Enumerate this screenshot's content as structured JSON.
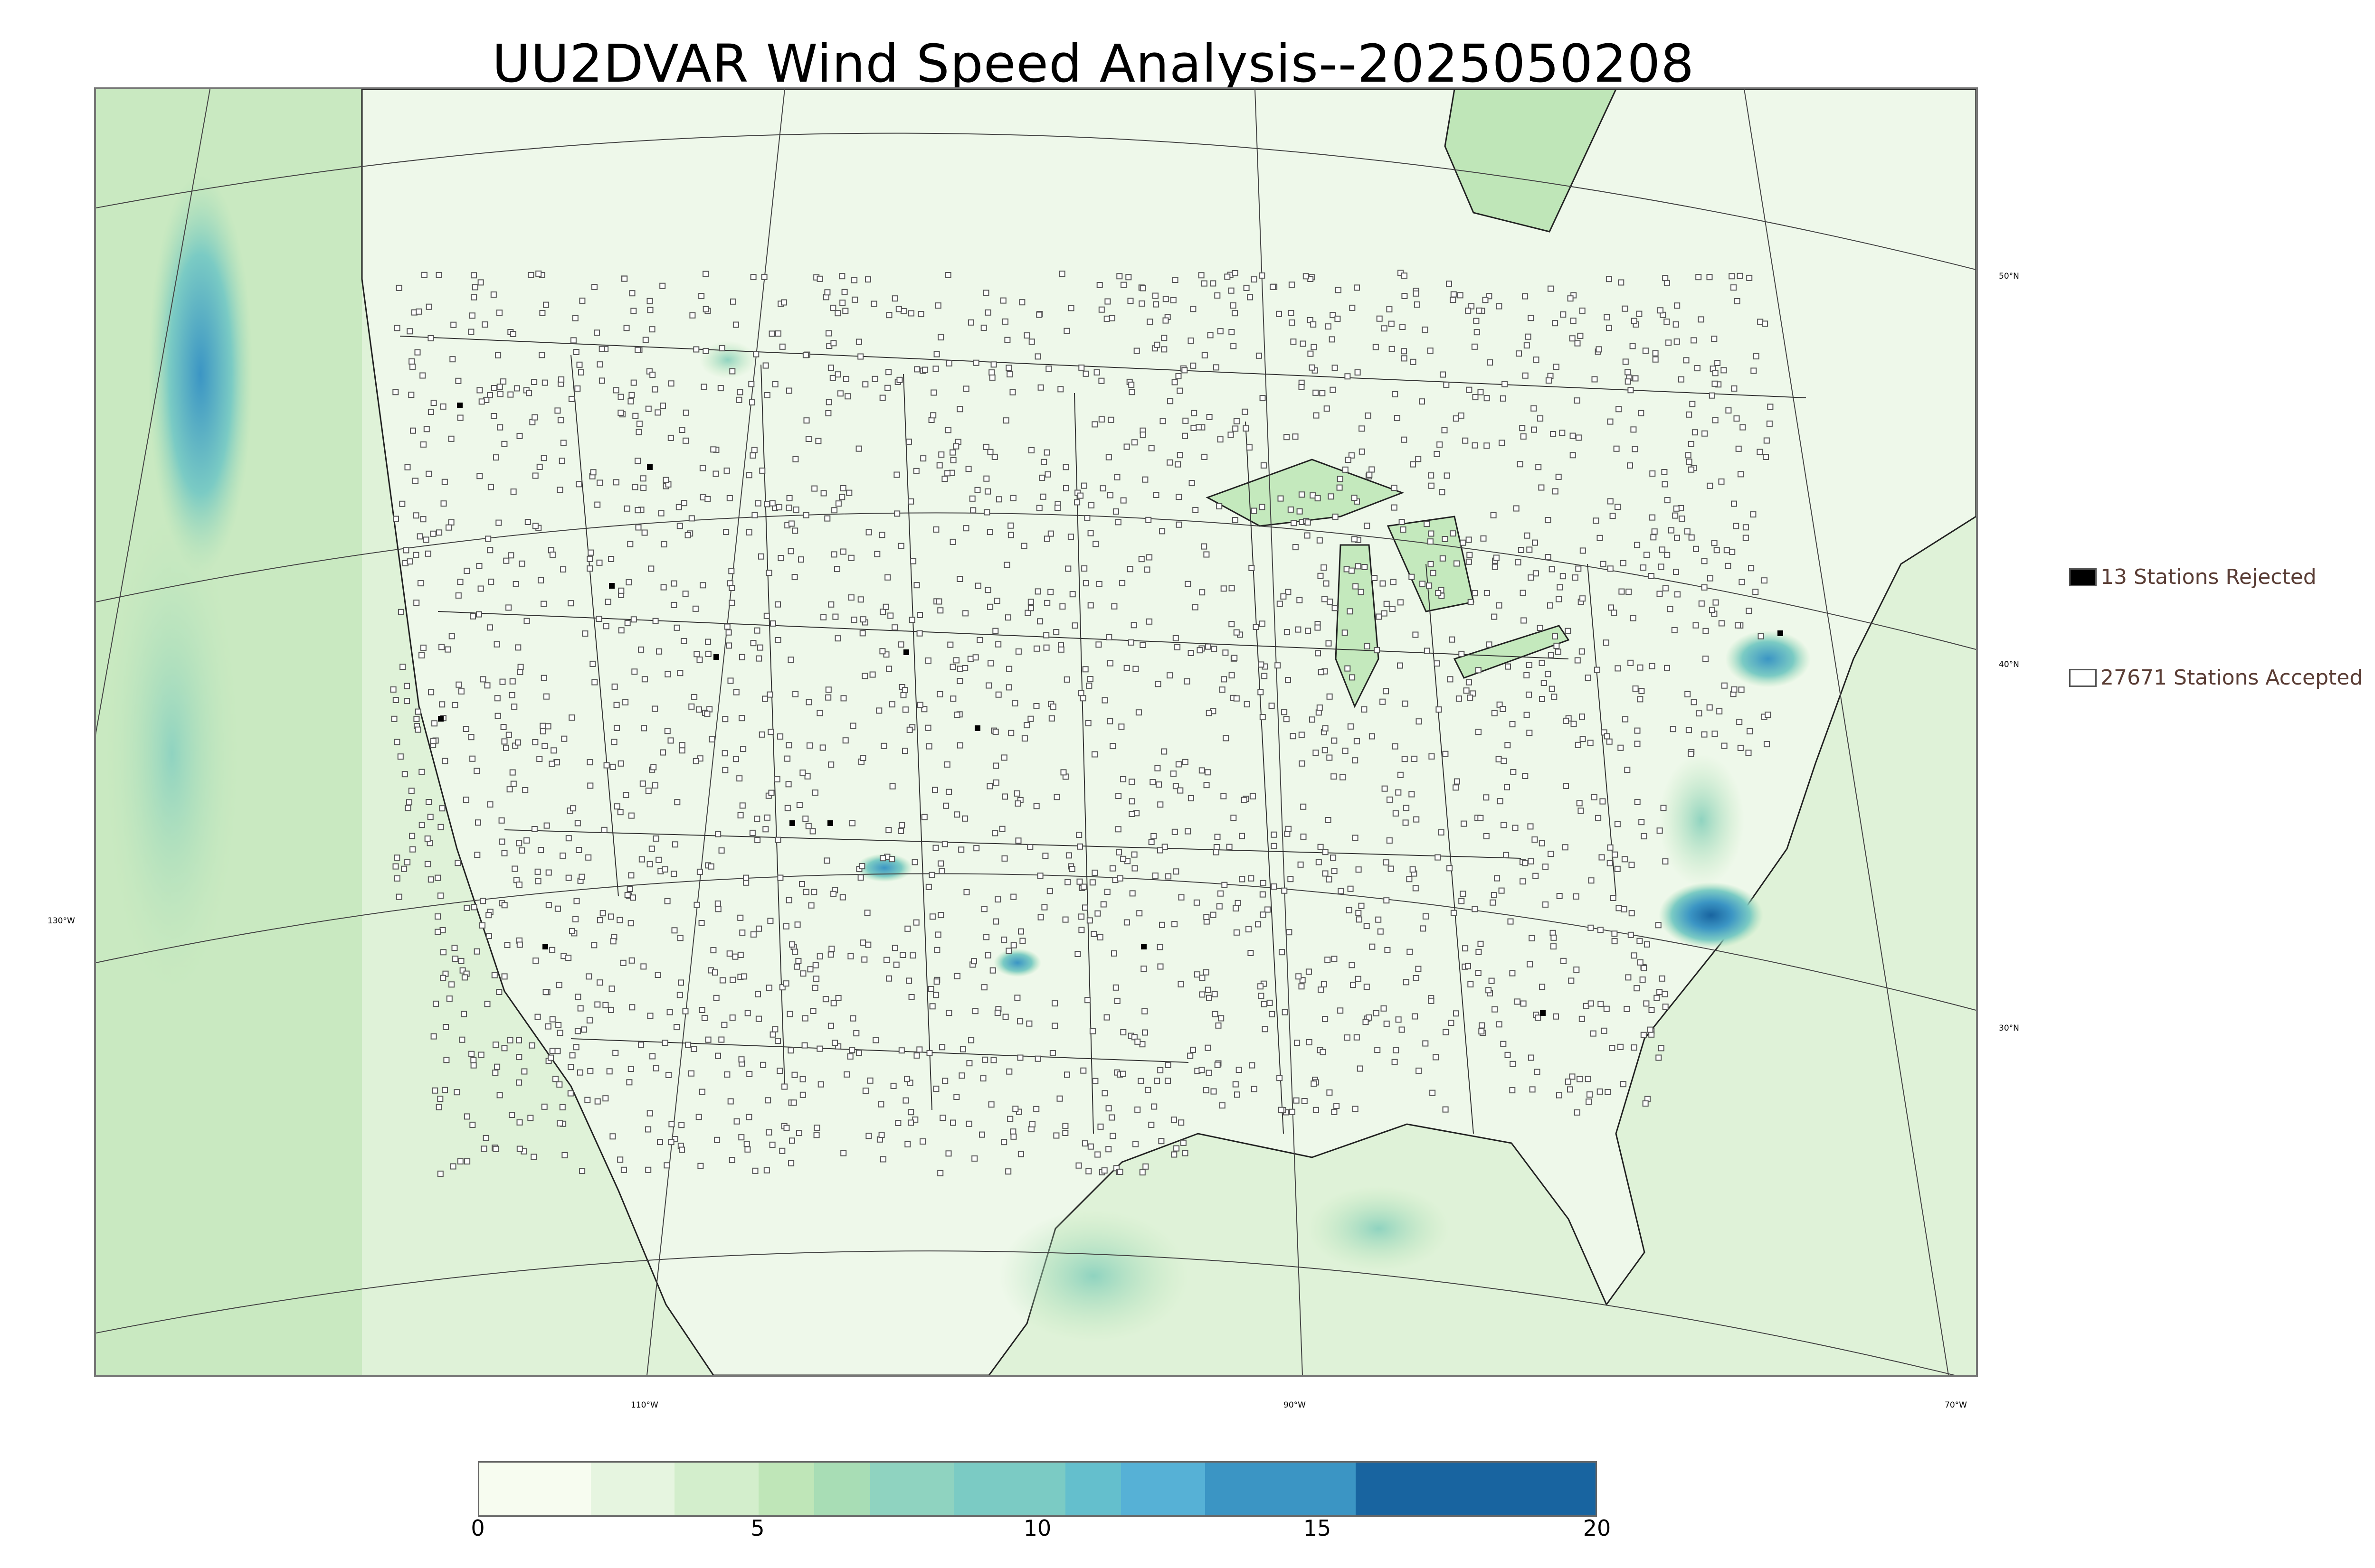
{
  "title": "UU2DVAR Wind Speed Analysis--2025050208",
  "graticule": {
    "lat_labels": [
      "50°N",
      "40°N",
      "30°N"
    ],
    "lon_labels": [
      "130°W",
      "110°W",
      "90°W",
      "70°W"
    ]
  },
  "legend": {
    "rejected": {
      "label": "13 Stations Rejected",
      "count": 13,
      "color": "#000000"
    },
    "accepted": {
      "label": "27671 Stations Accepted",
      "count": 27671,
      "color": "#ffffff"
    }
  },
  "colorbar": {
    "ticks": [
      "0",
      "5",
      "10",
      "15",
      "20"
    ],
    "min": 0,
    "max": 20,
    "bins": [
      {
        "from": 0,
        "to": 2,
        "color": "#f7fcf0"
      },
      {
        "from": 2,
        "to": 3.5,
        "color": "#e6f5e0"
      },
      {
        "from": 3.5,
        "to": 5,
        "color": "#d3eecc"
      },
      {
        "from": 5,
        "to": 6,
        "color": "#bfe6b8"
      },
      {
        "from": 6,
        "to": 7,
        "color": "#a8ddb5"
      },
      {
        "from": 7,
        "to": 8.5,
        "color": "#8fd3c0"
      },
      {
        "from": 8.5,
        "to": 10.5,
        "color": "#7bcbc4"
      },
      {
        "from": 10.5,
        "to": 11.5,
        "color": "#64bfcd"
      },
      {
        "from": 11.5,
        "to": 13,
        "color": "#56b1d6"
      },
      {
        "from": 13,
        "to": 15.7,
        "color": "#3b95c4"
      },
      {
        "from": 15.7,
        "to": 20,
        "color": "#1864a0"
      }
    ]
  },
  "map_colors": {
    "land": "#eef8ea",
    "water": "#d6efd0",
    "line": "#333333"
  }
}
